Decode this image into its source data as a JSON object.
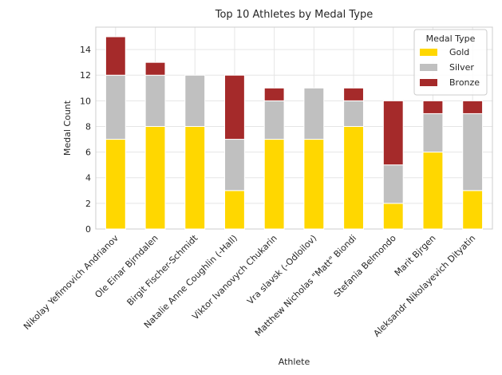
{
  "chart_data": {
    "type": "bar",
    "stacked": true,
    "title": "Top 10 Athletes by Medal Type",
    "xlabel": "Athlete",
    "ylabel": "Medal Count",
    "ylim": [
      0,
      15.75
    ],
    "yticks": [
      0,
      2,
      4,
      6,
      8,
      10,
      12,
      14
    ],
    "grid": true,
    "legend": {
      "title": "Medal Type",
      "placement": "top-right"
    },
    "categories": [
      "Nikolay Yefimovich Andrianov",
      "Ole Einar Bjrndalen",
      "Birgit Fischer-Schmidt",
      "Natalie Anne Coughlin (-Hall)",
      "Viktor Ivanovych Chukarin",
      "Vra slavsk (-Odloilov)",
      "Matthew Nicholas \"Matt\" Biondi",
      "Stefania Belmondo",
      "Marit Bjrgen",
      "Aleksandr Nikolayevich Dityatin"
    ],
    "series": [
      {
        "name": "Gold",
        "color": "#FFD700",
        "values": [
          7,
          8,
          8,
          3,
          7,
          7,
          8,
          2,
          6,
          3
        ]
      },
      {
        "name": "Silver",
        "color": "#C0C0C0",
        "values": [
          5,
          4,
          4,
          4,
          3,
          4,
          2,
          3,
          3,
          6
        ]
      },
      {
        "name": "Bronze",
        "color": "#A52A2A",
        "values": [
          3,
          1,
          0,
          5,
          1,
          0,
          1,
          5,
          1,
          1
        ]
      }
    ]
  }
}
